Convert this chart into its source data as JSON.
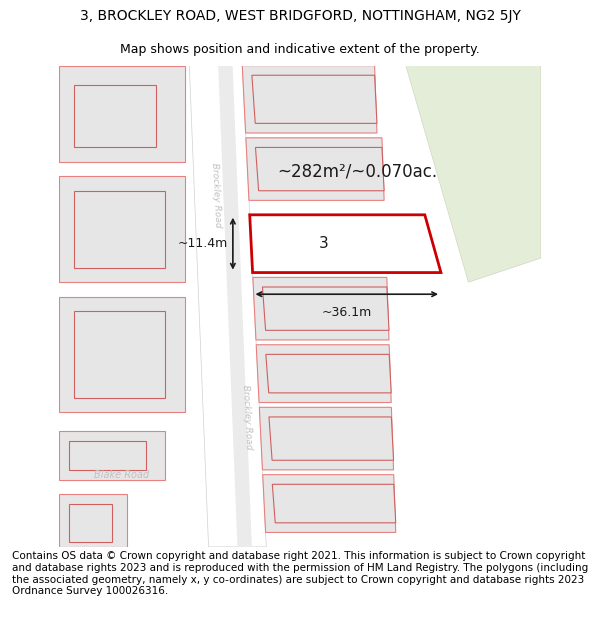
{
  "title_line1": "3, BROCKLEY ROAD, WEST BRIDGFORD, NOTTINGHAM, NG2 5JY",
  "title_line2": "Map shows position and indicative extent of the property.",
  "footer_text": "Contains OS data © Crown copyright and database right 2021. This information is subject to Crown copyright and database rights 2023 and is reproduced with the permission of HM Land Registry. The polygons (including the associated geometry, namely x, y co-ordinates) are subject to Crown copyright and database rights 2023 Ordnance Survey 100026316.",
  "bg_color": "#ffffff",
  "map_bg": "#f2f2f2",
  "road_color": "#ffffff",
  "road_edge_color": "#d0d0d0",
  "road_label_color": "#c0c0c0",
  "road_label1": "Brockley Road",
  "road_label2": "Brockley Road",
  "road_label3": "Blake Road",
  "building_fill": "#e6e6e6",
  "building_edge": "#e88080",
  "highlight_fill": "#ffffff",
  "highlight_edge": "#cc0000",
  "green_fill": "#e4edd8",
  "green_edge": "#d0d8c0",
  "area_label": "~282m²/~0.070ac.",
  "property_number": "3",
  "dim_width": "~36.1m",
  "dim_height": "~11.4m",
  "title_fontsize": 10,
  "subtitle_fontsize": 9,
  "footer_fontsize": 7.5
}
